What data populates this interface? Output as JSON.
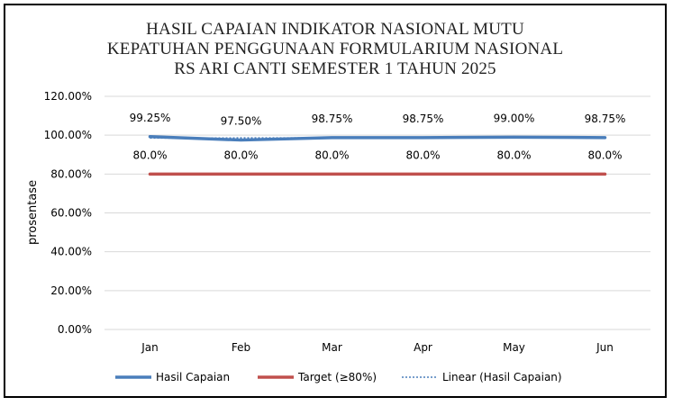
{
  "chart_data": {
    "type": "line",
    "title_lines": [
      "HASIL CAPAIAN INDIKATOR NASIONAL MUTU",
      "KEPATUHAN PENGGUNAAN FORMULARIUM NASIONAL",
      "RS ARI CANTI SEMESTER 1 TAHUN 2025"
    ],
    "ylabel": "prosentase",
    "xlabel": "",
    "categories": [
      "Jan",
      "Feb",
      "Mar",
      "Apr",
      "May",
      "Jun"
    ],
    "ylim": [
      0,
      120
    ],
    "yticks": [
      0,
      20,
      40,
      60,
      80,
      100,
      120
    ],
    "ytick_labels": [
      "0.00%",
      "20.00%",
      "40.00%",
      "60.00%",
      "80.00%",
      "100.00%",
      "120.00%"
    ],
    "grid": "horizontal",
    "legend_position": "bottom",
    "series": [
      {
        "name": "Hasil Capaian",
        "values": [
          99.25,
          97.5,
          98.75,
          98.75,
          99.0,
          98.75
        ],
        "labels": [
          "99.25%",
          "97.50%",
          "98.75%",
          "98.75%",
          "99.00%",
          "98.75%"
        ],
        "color": "#4a7ebb",
        "style": "solid"
      },
      {
        "name": "Target (≥80%)",
        "values": [
          80,
          80,
          80,
          80,
          80,
          80
        ],
        "labels": [
          "80.0%",
          "80.0%",
          "80.0%",
          "80.0%",
          "80.0%",
          "80.0%"
        ],
        "color": "#c0504d",
        "style": "solid"
      }
    ],
    "trendline": {
      "name": "Linear (Hasil Capaian)",
      "color": "#4a7ebb",
      "style": "dotted"
    }
  }
}
